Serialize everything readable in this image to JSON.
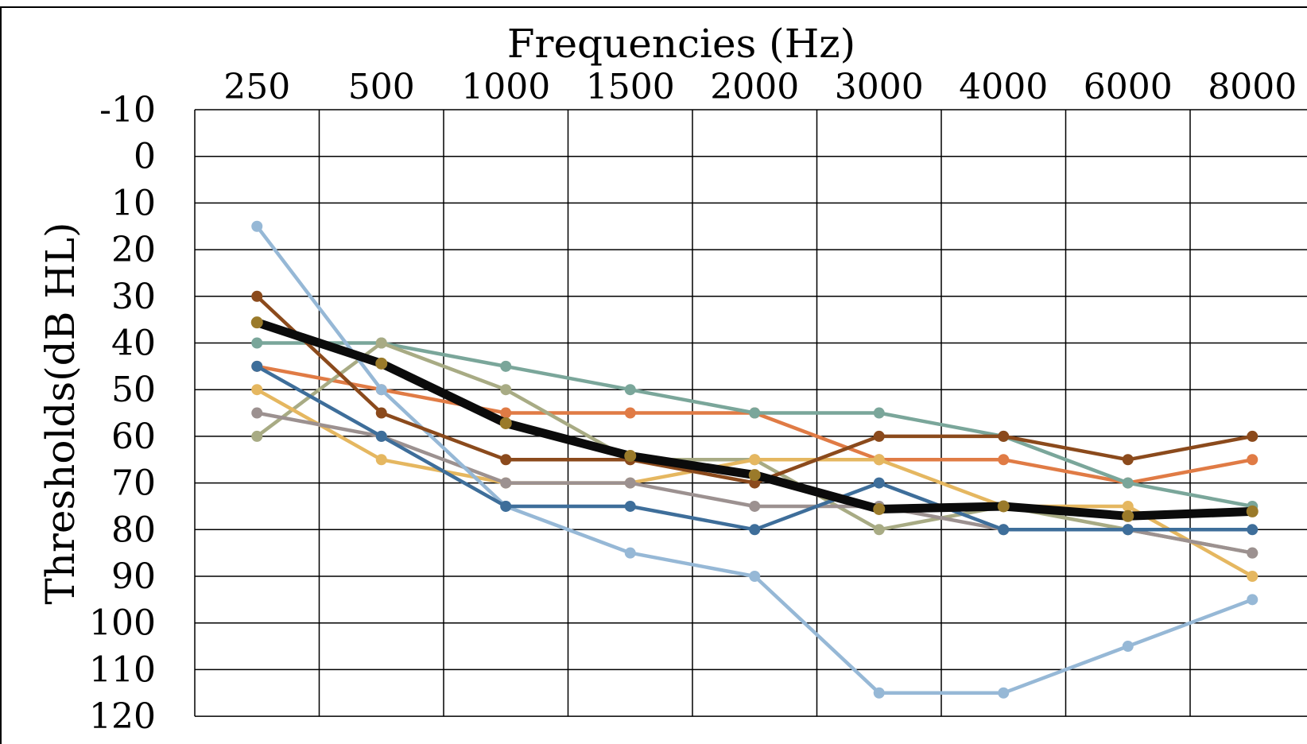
{
  "chart_data": {
    "type": "line",
    "title": "",
    "xlabel": "Frequencies (Hz)",
    "ylabel": "Thresholds(dB HL)",
    "categories": [
      "250",
      "500",
      "1000",
      "1500",
      "2000",
      "3000",
      "4000",
      "6000",
      "8000"
    ],
    "y_ticks": [
      "-10",
      "0",
      "10",
      "20",
      "30",
      "40",
      "50",
      "60",
      "70",
      "80",
      "90",
      "100",
      "110",
      "120"
    ],
    "ylim": [
      -10,
      120
    ],
    "y_inverted": true,
    "x_axis_position": "top",
    "grid": true,
    "legend": "none",
    "series": [
      {
        "color": "#f4b183",
        "line_color": "#e07b45",
        "values": [
          45,
          50,
          55,
          55,
          55,
          65,
          65,
          70,
          65
        ]
      },
      {
        "color": "#7aa69a",
        "line_color": "#7aa69a",
        "values": [
          40,
          40,
          45,
          50,
          55,
          55,
          60,
          70,
          75
        ]
      },
      {
        "color": "#a8ab84",
        "line_color": "#a8ab84",
        "values": [
          60,
          40,
          50,
          65,
          65,
          80,
          75,
          80,
          85
        ]
      },
      {
        "color": "#e5b760",
        "line_color": "#e5b760",
        "values": [
          50,
          65,
          70,
          70,
          65,
          65,
          75,
          75,
          90
        ]
      },
      {
        "color": "#9c9190",
        "line_color": "#9c9190",
        "values": [
          55,
          60,
          70,
          70,
          75,
          75,
          80,
          80,
          85
        ]
      },
      {
        "color": "#96b8d6",
        "line_color": "#96b8d6",
        "values": [
          15,
          50,
          75,
          85,
          90,
          115,
          115,
          105,
          95
        ]
      },
      {
        "color": "#3e6e9a",
        "line_color": "#3e6e9a",
        "values": [
          45,
          60,
          75,
          75,
          80,
          70,
          80,
          80,
          80
        ]
      },
      {
        "color": "#8b4a1c",
        "line_color": "#8b4a1c",
        "values": [
          30,
          55,
          65,
          65,
          70,
          60,
          60,
          65,
          60
        ]
      },
      {
        "color": "#0b0b0b",
        "line_color": "#0b0b0b",
        "marker_color": "#9a7a2a",
        "emphasis": true,
        "values": [
          35.6,
          44.4,
          57.2,
          64.2,
          68.3,
          75.6,
          75.0,
          77.1,
          76.1
        ]
      }
    ]
  }
}
